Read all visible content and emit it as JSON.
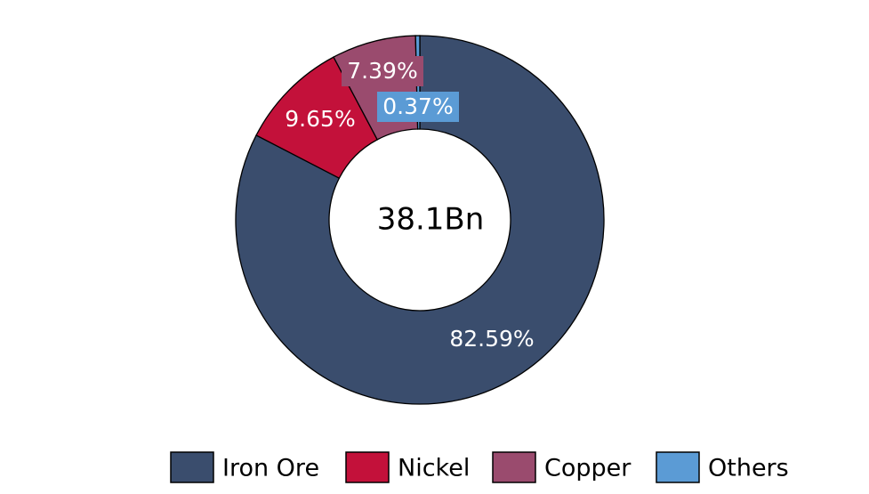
{
  "chart_data": {
    "type": "donut",
    "center_label": "38.1Bn",
    "categories": [
      "Iron Ore",
      "Nickel",
      "Copper",
      "Others"
    ],
    "values": [
      82.59,
      9.65,
      7.39,
      0.37
    ],
    "value_labels": [
      "82.59%",
      "9.65%",
      "7.39%",
      "0.37%"
    ],
    "colors": [
      "#3a4d6d",
      "#c3113a",
      "#9a4b6e",
      "#5b9bd5"
    ],
    "legend": "bottom"
  }
}
